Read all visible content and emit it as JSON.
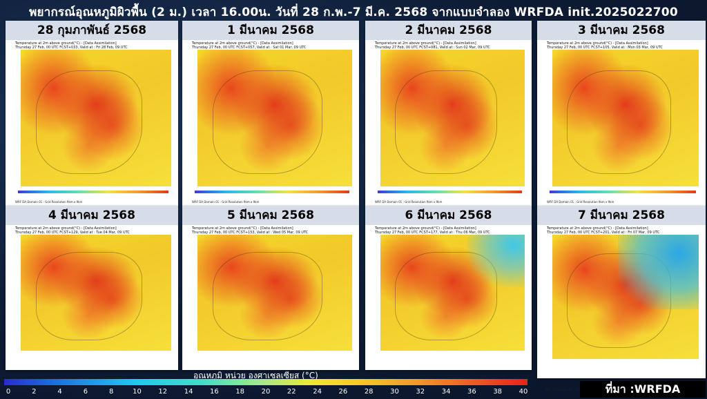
{
  "title": "พยากรณ์อุณหภูมิผิวพื้น (2 ม.) เวลา  16.00น. วันที่ 28 ก.พ.-7 มี.ค. 2568 จากแบบจำลอง WRFDA init.2025022700",
  "panels": [
    {
      "label": "28 กุมภาพันธ์ 2568",
      "header1": "Temperature at 2m above ground(°C) - [Data Assimilation]",
      "header2": "Thursday 27 Feb, 00 UTC FCST+033, Valid at : Fri 28 Feb, 09 UTC",
      "cool": ""
    },
    {
      "label": "1 มีนาคม 2568",
      "header1": "Temperature at 2m above ground(°C) - [Data Assimilation]",
      "header2": "Thursday 27 Feb, 00 UTC FCST+057, Valid at : Sat 01 Mar, 09 UTC",
      "cool": ""
    },
    {
      "label": "2 มีนาคม 2568",
      "header1": "Temperature at 2m above ground(°C) - [Data Assimilation]",
      "header2": "Thursday 27 Feb, 00 UTC FCST+081, Valid at : Sun 02 Mar, 09 UTC",
      "cool": ""
    },
    {
      "label": "3 มีนาคม 2568",
      "header1": "Temperature at 2m above ground(°C) - [Data Assimilation]",
      "header2": "Thursday 27 Feb, 00 UTC FCST+105, Valid at : Mon 03 Mar, 09 UTC",
      "cool": ""
    },
    {
      "label": "4 มีนาคม 2568",
      "header1": "Temperature at 2m above ground(°C) - [Data Assimilation]",
      "header2": "Thursday 27 Feb, 00 UTC FCST+129, Valid at : Tue 04 Mar, 09 UTC",
      "cool": ""
    },
    {
      "label": "5 มีนาคม 2568",
      "header1": "Temperature at 2m above ground(°C) - [Data Assimilation]",
      "header2": "Thursday 27 Feb, 00 UTC FCST+153, Valid at : Wed 05 Mar, 09 UTC",
      "cool": ""
    },
    {
      "label": "6 มีนาคม 2568",
      "header1": "Temperature at 2m above ground(°C) - [Data Assimilation]",
      "header2": "Thursday 27 Feb, 00 UTC FCST+177, Valid at : Thu 06 Mar, 09 UTC",
      "cool": "cool"
    },
    {
      "label": "7 มีนาคม 2568",
      "header1": "Temperature at 2m above ground(°C) - [Data Assimilation]",
      "header2": "Thursday 27 Feb, 00 UTC FCST+201, Valid at : Fri 07 Mar, 09 UTC",
      "cool": "cooler"
    }
  ],
  "panel_footer": "WRF DA Domain 01 : Grid Resolution 9km x 9km",
  "colorbar": {
    "title": "อุณหภูมิ หน่วย องศาเซลเซียส (°C)",
    "ticks": [
      "0",
      "2",
      "4",
      "6",
      "8",
      "10",
      "12",
      "14",
      "16",
      "18",
      "20",
      "22",
      "24",
      "26",
      "28",
      "30",
      "32",
      "34",
      "36",
      "38",
      "40"
    ]
  },
  "source": "ที่มา :WRFDA"
}
